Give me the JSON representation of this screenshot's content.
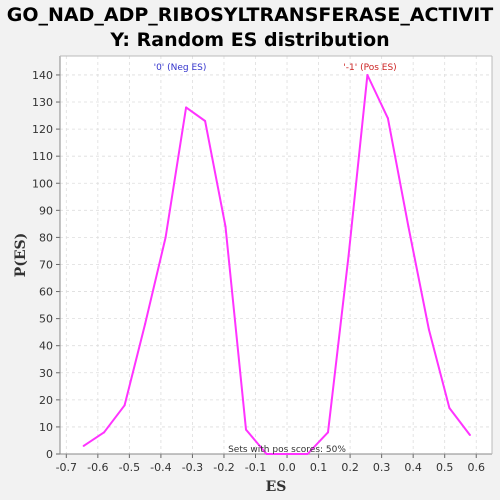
{
  "colors": {
    "background": "#f2f2f2",
    "plot_background": "#ffffff",
    "line": "#ff33ff",
    "neg_annotation": "#3333cc",
    "pos_annotation": "#cc2222",
    "grid": "#dddddd"
  },
  "chart_data": {
    "type": "line",
    "title_line1": "GO_NAD_ADP_RIBOSYLTRANSFERASE_ACTIVIT",
    "title_line2": "Y: Random ES distribution",
    "xlabel": "ES",
    "ylabel": "P(ES)",
    "xlim": [
      -0.72,
      0.65
    ],
    "ylim": [
      0,
      147
    ],
    "x_ticks": [
      "-0.7",
      "-0.6",
      "-0.5",
      "-0.4",
      "-0.3",
      "-0.2",
      "-0.1",
      "0.0",
      "0.1",
      "0.2",
      "0.3",
      "0.4",
      "0.5",
      "0.6"
    ],
    "y_ticks": [
      "0",
      "10",
      "20",
      "30",
      "40",
      "50",
      "60",
      "70",
      "80",
      "90",
      "100",
      "110",
      "120",
      "130",
      "140"
    ],
    "grid": true,
    "series": [
      {
        "x": [
          -0.645,
          -0.58,
          -0.515,
          -0.45,
          -0.385,
          -0.32,
          -0.26,
          -0.195,
          -0.13,
          -0.065,
          0.0,
          0.065,
          0.13,
          0.195,
          0.255,
          0.32,
          0.385,
          0.45,
          0.515,
          0.58
        ],
        "y": [
          3,
          8,
          18,
          48,
          80,
          128,
          123,
          84,
          9,
          0,
          0,
          0,
          8,
          73,
          140,
          124,
          84,
          46,
          17,
          7
        ]
      }
    ],
    "annotations": {
      "neg_label": "'0' (Neg ES)",
      "pos_label": "'-1' (Pos ES)",
      "bottom_note": "Sets with pos scores: 50%"
    }
  }
}
